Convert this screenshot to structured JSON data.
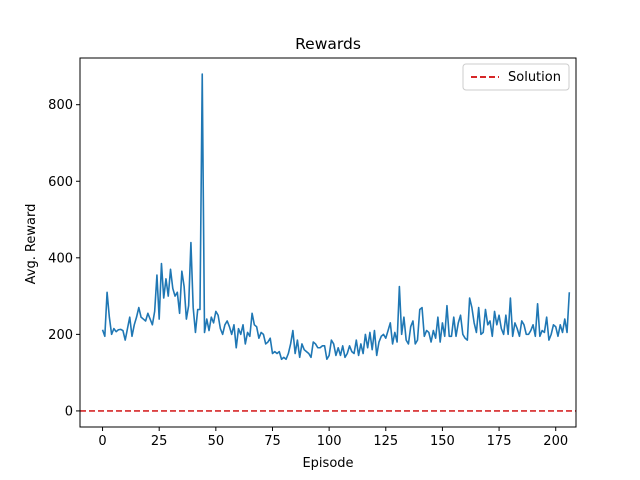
{
  "chart_data": {
    "type": "line",
    "title": "Rewards",
    "xlabel": "Episode",
    "ylabel": "Avg. Reward",
    "xlim": [
      -9.95,
      208.95
    ],
    "ylim": [
      -42,
      922
    ],
    "xticks": [
      0,
      25,
      50,
      75,
      100,
      125,
      150,
      175,
      200
    ],
    "yticks": [
      0,
      200,
      400,
      600,
      800
    ],
    "grid": false,
    "legend_position": "top-right",
    "series": [
      {
        "color": "#1f77b4",
        "x_start": 0,
        "x_step": 1,
        "values": [
          212,
          195,
          310,
          245,
          200,
          215,
          207,
          212,
          213,
          210,
          185,
          215,
          245,
          195,
          225,
          245,
          270,
          245,
          240,
          235,
          255,
          240,
          225,
          260,
          355,
          240,
          385,
          295,
          345,
          300,
          370,
          320,
          300,
          310,
          255,
          365,
          325,
          240,
          275,
          440,
          270,
          205,
          265,
          265,
          880,
          205,
          240,
          210,
          245,
          230,
          260,
          250,
          215,
          200,
          225,
          235,
          220,
          200,
          225,
          165,
          215,
          200,
          225,
          175,
          205,
          195,
          255,
          225,
          220,
          190,
          205,
          200,
          175,
          180,
          190,
          150,
          155,
          150,
          155,
          135,
          140,
          135,
          150,
          175,
          210,
          150,
          185,
          140,
          175,
          160,
          155,
          150,
          140,
          180,
          175,
          165,
          165,
          170,
          170,
          135,
          145,
          185,
          175,
          145,
          165,
          145,
          170,
          140,
          150,
          170,
          155,
          150,
          185,
          145,
          175,
          150,
          200,
          165,
          205,
          160,
          210,
          145,
          180,
          195,
          200,
          190,
          210,
          230,
          175,
          205,
          180,
          325,
          200,
          245,
          185,
          175,
          220,
          235,
          175,
          185,
          265,
          270,
          195,
          210,
          205,
          180,
          210,
          190,
          245,
          180,
          230,
          195,
          275,
          195,
          195,
          245,
          195,
          230,
          250,
          200,
          190,
          185,
          295,
          270,
          230,
          205,
          270,
          200,
          205,
          265,
          225,
          235,
          195,
          260,
          225,
          250,
          215,
          200,
          250,
          200,
          295,
          195,
          230,
          215,
          195,
          235,
          225,
          200,
          200,
          210,
          225,
          195,
          280,
          195,
          210,
          205,
          245,
          185,
          200,
          225,
          220,
          195,
          225,
          205,
          240,
          205,
          310
        ]
      }
    ],
    "reference_lines": [
      {
        "name": "Solution",
        "y": 0,
        "color": "#d62728",
        "style": "dashed"
      }
    ]
  }
}
